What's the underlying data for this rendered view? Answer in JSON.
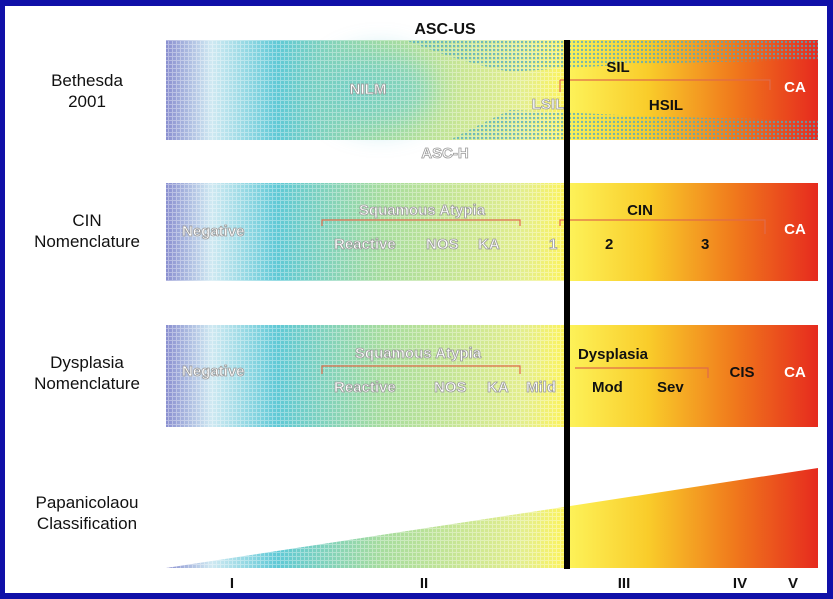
{
  "rows": {
    "bethesda": {
      "line1": "Bethesda",
      "line2": "2001"
    },
    "cin": {
      "line1": "CIN",
      "line2": "Nomenclature"
    },
    "dysplasia": {
      "line1": "Dysplasia",
      "line2": "Nomenclature"
    },
    "pap": {
      "line1": "Papanicolaou",
      "line2": "Classification"
    }
  },
  "bethesda_band": {
    "top_label": "ASC-US",
    "bottom_label": "ASC-H",
    "nilm": "NILM",
    "lsil": "LSIL",
    "sil": "SIL",
    "hsil": "HSIL",
    "ca": "CA"
  },
  "cin_band": {
    "negative": "Negative",
    "squamous_atypia": "Squamous Atypia",
    "reactive": "Reactive",
    "nos": "NOS",
    "ka": "KA",
    "grade1": "1",
    "cin": "CIN",
    "grade2": "2",
    "grade3": "3",
    "ca": "CA"
  },
  "dysplasia_band": {
    "negative": "Negative",
    "squamous_atypia": "Squamous Atypia",
    "reactive": "Reactive",
    "nos": "NOS",
    "ka": "KA",
    "mild": "Mild",
    "dysplasia": "Dysplasia",
    "mod": "Mod",
    "sev": "Sev",
    "cis": "CIS",
    "ca": "CA"
  },
  "pap_classes": [
    "I",
    "II",
    "III",
    "IV",
    "V"
  ],
  "colors": {
    "frame": "#1010a8",
    "gradient": [
      "#8a8fd0",
      "#cfe9f2",
      "#5fc9d6",
      "#a6dc9e",
      "#e4ee8c",
      "#fdf35a",
      "#f9cc2a",
      "#f07a1c",
      "#e62a1e"
    ],
    "divider": "#000000"
  }
}
